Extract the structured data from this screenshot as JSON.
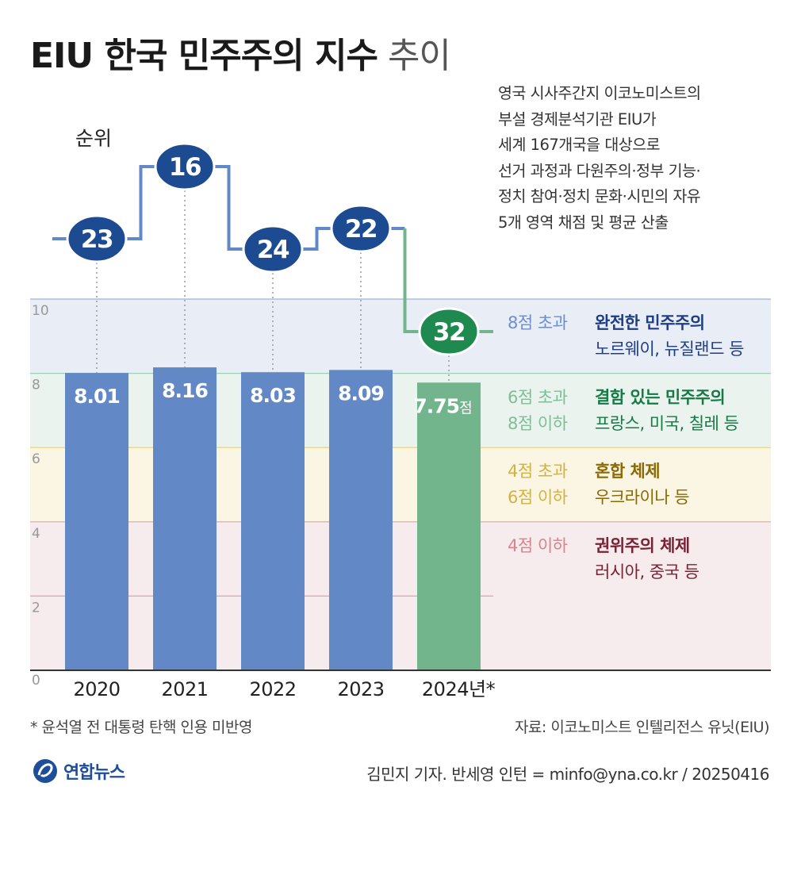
{
  "title": {
    "bold": "EIU 한국 민주주의 지수",
    "light": "추이"
  },
  "description": [
    "영국 시사주간지 이코노미스트의",
    "부설 경제분석기관 EIU가",
    "세계 167개국을 대상으로",
    "선거 과정과 다원주의·정부 기능·",
    "정치 참여·정치 문화·시민의 자유",
    "5개 영역 채점 및 평균 산출"
  ],
  "rank_label": "순위",
  "colors": {
    "blue_bar": "#6288c6",
    "green_bar": "#72b48c",
    "rank_blue": "#1d4b91",
    "rank_green": "#1e8a4f",
    "band_full": "#e9edf6",
    "band_flawed": "#ebf3ee",
    "band_hybrid": "#fbf6e4",
    "band_auth": "#f6ebed"
  },
  "chart_data": {
    "type": "bar",
    "title": "EIU 한국 민주주의 지수 추이",
    "categories": [
      "2020",
      "2021",
      "2022",
      "2023",
      "2024년*"
    ],
    "values": [
      8.01,
      8.16,
      8.03,
      8.09,
      7.75
    ],
    "value_labels": [
      "8.01",
      "8.16",
      "8.03",
      "8.09",
      "7.75"
    ],
    "unit_suffix": "점",
    "ranks": [
      23,
      16,
      24,
      22,
      32
    ],
    "ylim": [
      0,
      10
    ],
    "yticks": [
      "0",
      "2",
      "4",
      "6",
      "8",
      "10"
    ],
    "bands": [
      {
        "range": [
          8,
          10
        ],
        "condition": [
          "8점 초과"
        ],
        "category": "완전한 민주주의",
        "example": "노르웨이, 뉴질랜드 등",
        "bg": "#e9edf6",
        "condColor": "#6d8fce",
        "catColor": "#1d3d85",
        "exColor": "#1d3d85"
      },
      {
        "range": [
          6,
          8
        ],
        "condition": [
          "6점 초과",
          "8점 이하"
        ],
        "category": "결함 있는 민주주의",
        "example": "프랑스, 미국, 칠레 등",
        "bg": "#ebf3ee",
        "condColor": "#7dbf98",
        "catColor": "#157a45",
        "exColor": "#157a45"
      },
      {
        "range": [
          4,
          6
        ],
        "condition": [
          "4점 초과",
          "6점 이하"
        ],
        "category": "혼합 체제",
        "example": "우크라이나 등",
        "bg": "#fbf6e4",
        "condColor": "#d5b23f",
        "catColor": "#8a6a06",
        "exColor": "#8a6a06"
      },
      {
        "range": [
          0,
          4
        ],
        "condition": [
          "4점 이하"
        ],
        "category": "권위주의 체제",
        "example": "러시아, 중국 등",
        "bg": "#f6ebed",
        "condColor": "#d9838e",
        "catColor": "#7a2234",
        "exColor": "#7a2234"
      }
    ]
  },
  "footnote": "* 윤석열 전 대통령 탄핵 인용 미반영",
  "source": "자료: 이코노미스트 인텔리전스 유닛(EIU)",
  "credit": "김민지 기자. 반세영 인턴 = minfo@yna.co.kr / 20250416",
  "logo": {
    "text": "연합뉴스"
  }
}
